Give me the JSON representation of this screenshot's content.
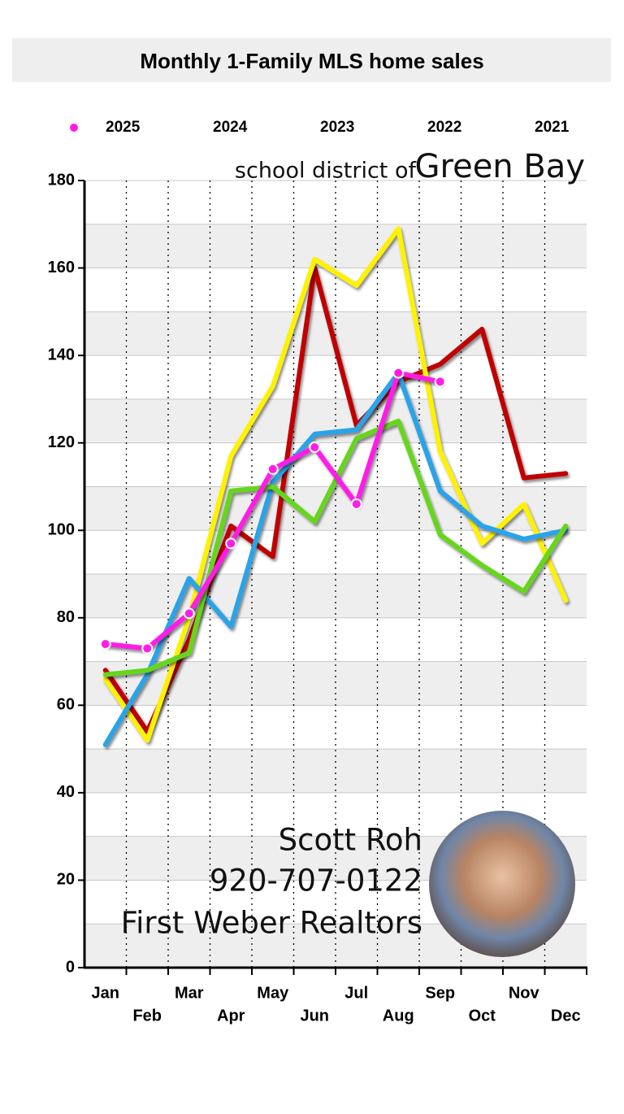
{
  "chart_data": {
    "type": "line",
    "title": "Monthly 1-Family  MLS home sales",
    "annotations": [
      "school district of",
      "Green Bay",
      "Scott Roh",
      "920-707-0122",
      "First Weber Realtors"
    ],
    "categories": [
      "Jan",
      "Feb",
      "Mar",
      "Apr",
      "May",
      "Jun",
      "Jul",
      "Aug",
      "Sep",
      "Oct",
      "Nov",
      "Dec"
    ],
    "series": [
      {
        "name": "2025",
        "color": "#ff1ee6",
        "values": [
          74,
          73,
          81,
          97,
          114,
          119,
          106,
          136,
          134,
          null,
          null,
          null
        ]
      },
      {
        "name": "2024",
        "color": "#66d61e",
        "values": [
          67,
          68,
          72,
          109,
          110,
          102,
          121,
          125,
          99,
          92,
          86,
          101
        ]
      },
      {
        "name": "2023",
        "color": "#29a3e8",
        "values": [
          51,
          67,
          89,
          78,
          111,
          122,
          123,
          136,
          109,
          101,
          98,
          100
        ]
      },
      {
        "name": "2022",
        "color": "#fff200",
        "values": [
          66,
          52,
          80,
          117,
          133,
          162,
          156,
          169,
          118,
          97,
          106,
          84
        ]
      },
      {
        "name": "2021",
        "color": "#c00000",
        "values": [
          68,
          54,
          75,
          101,
          94,
          160,
          124,
          134,
          138,
          146,
          112,
          113
        ]
      }
    ],
    "ylim": [
      0,
      180
    ],
    "yticks": [
      0,
      20,
      40,
      60,
      80,
      100,
      120,
      140,
      160,
      180
    ],
    "grid": true,
    "legend": "top"
  }
}
